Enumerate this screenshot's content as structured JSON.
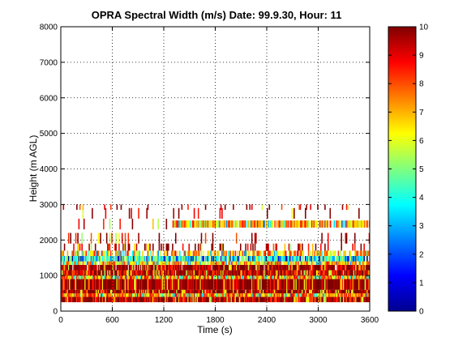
{
  "chart_data": {
    "type": "heatmap",
    "title": "OPRA Spectral Width (m/s)  Date: 99.9.30, Hour: 11",
    "xlabel": "Time (s)",
    "ylabel": "Height (m AGL)",
    "xlim": [
      0,
      3600
    ],
    "ylim": [
      0,
      8000
    ],
    "xticks": [
      "0",
      "600",
      "1200",
      "1800",
      "2400",
      "3000",
      "3600"
    ],
    "yticks": [
      "0",
      "1000",
      "2000",
      "3000",
      "4000",
      "5000",
      "6000",
      "7000",
      "8000"
    ],
    "grid": true,
    "colorbar": {
      "range": [
        0,
        10
      ],
      "ticks": [
        "0",
        "1",
        "2",
        "3",
        "4",
        "5",
        "6",
        "7",
        "8",
        "9",
        "10"
      ],
      "colormap": "jet"
    },
    "bands": [
      {
        "bottom": 250,
        "top": 400,
        "t_start": 0,
        "t_end": 3600,
        "dominant": 9.5,
        "coverage": 1.0
      },
      {
        "bottom": 400,
        "top": 500,
        "t_start": 0,
        "t_end": 3600,
        "dominant": 7.5,
        "coverage": 1.0
      },
      {
        "bottom": 500,
        "top": 600,
        "t_start": 0,
        "t_end": 3600,
        "dominant": 10,
        "coverage": 1.0
      },
      {
        "bottom": 600,
        "top": 900,
        "t_start": 0,
        "t_end": 3600,
        "dominant": 10,
        "coverage": 1.0
      },
      {
        "bottom": 900,
        "top": 1000,
        "t_start": 0,
        "t_end": 3600,
        "dominant": 7.5,
        "coverage": 1.0
      },
      {
        "bottom": 1000,
        "top": 1150,
        "t_start": 0,
        "t_end": 3600,
        "dominant": 9.5,
        "coverage": 1.0
      },
      {
        "bottom": 1150,
        "top": 1300,
        "t_start": 0,
        "t_end": 3600,
        "dominant": 10,
        "coverage": 0.95
      },
      {
        "bottom": 1300,
        "top": 1400,
        "t_start": 0,
        "t_end": 3600,
        "dominant": 7,
        "coverage": 0.9
      },
      {
        "bottom": 1400,
        "top": 1550,
        "t_start": 0,
        "t_end": 3600,
        "dominant": 4,
        "coverage": 0.9
      },
      {
        "bottom": 1550,
        "top": 1700,
        "t_start": 0,
        "t_end": 3600,
        "dominant": 7,
        "coverage": 0.6
      },
      {
        "bottom": 1700,
        "top": 1900,
        "t_start": 0,
        "t_end": 3600,
        "dominant": 9.5,
        "coverage": 0.25
      },
      {
        "bottom": 1900,
        "top": 2200,
        "t_start": 0,
        "t_end": 3600,
        "dominant": 9.5,
        "coverage": 0.12
      },
      {
        "bottom": 2350,
        "top": 2550,
        "t_start": 1300,
        "t_end": 3600,
        "dominant": 7,
        "coverage": 0.9
      },
      {
        "bottom": 2300,
        "top": 2600,
        "t_start": 0,
        "t_end": 1300,
        "dominant": 9.5,
        "coverage": 0.12
      },
      {
        "bottom": 2600,
        "top": 2900,
        "t_start": 0,
        "t_end": 3600,
        "dominant": 9.5,
        "coverage": 0.06
      },
      {
        "bottom": 2850,
        "top": 3000,
        "t_start": 0,
        "t_end": 3600,
        "dominant": 9.5,
        "coverage": 0.08
      }
    ]
  }
}
